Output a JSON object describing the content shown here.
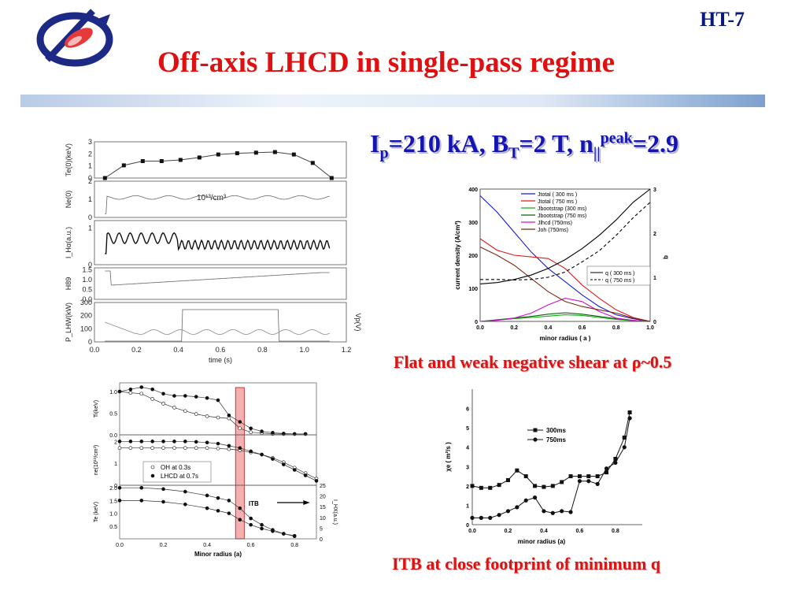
{
  "slide": {
    "tag": "HT-7",
    "title": "Off-axis  LHCD in single-pass regime",
    "params": {
      "ip": "I",
      "ip_sub": "p",
      "ip_val": "=210 kA, B",
      "bt_sub": "T",
      "bt_val": "=2 T, n",
      "n_sub": "||",
      "n_sup": "peak",
      "n_val": "=2.9"
    },
    "caption_shear": "Flat and weak negative shear at ρ~0.5",
    "caption_itb": "ITB at close footprint of minimum q"
  },
  "colors": {
    "title": "#e01010",
    "params": "#1414b4",
    "caption": "#d81414",
    "tag": "#0a1a7a"
  },
  "chart_data": [
    {
      "type": "line",
      "panels": [
        {
          "ylabel": "Te(0)(keV)",
          "yticks": [
            "0",
            "1",
            "2",
            "3"
          ],
          "ylim": [
            0,
            3
          ],
          "x": [
            0.05,
            0.14,
            0.23,
            0.32,
            0.41,
            0.5,
            0.59,
            0.68,
            0.77,
            0.86,
            0.95,
            1.04,
            1.13
          ],
          "values": [
            0,
            1.05,
            1.4,
            1.4,
            1.5,
            1.7,
            1.95,
            2.05,
            2.1,
            2.15,
            1.95,
            1.25,
            0
          ]
        },
        {
          "ylabel": "Ne(0)",
          "annotation": "10¹³/cm³",
          "yticks": [
            "0",
            "1",
            "2"
          ],
          "ylim": [
            0,
            2
          ]
        },
        {
          "ylabel": "I_Hα(a.u.)",
          "yticks": [
            "0",
            "1"
          ],
          "ylim": [
            0,
            1.2
          ]
        },
        {
          "ylabel": "H89",
          "yticks": [
            "0.0",
            "0.5",
            "1.0",
            "1.5"
          ],
          "ylim": [
            0,
            1.6
          ]
        },
        {
          "ylabel": "P_LHW(kW)",
          "ylabel_right": "Vp(V)",
          "yticks": [
            "0",
            "100",
            "200",
            "300"
          ],
          "yticks_right": [
            "0",
            "2"
          ],
          "ylim": [
            0,
            300
          ]
        }
      ],
      "xlabel": "time (s)",
      "xticks": [
        "0.0",
        "0.2",
        "0.4",
        "0.6",
        "0.8",
        "1.0",
        "1.2"
      ],
      "xlim": [
        0,
        1.2
      ]
    },
    {
      "type": "line",
      "xlabel": "minor radius ( a )",
      "ylabel": "current density (A/cm²)",
      "ylabel_right": "q",
      "xlim": [
        0,
        1
      ],
      "ylim": [
        0,
        400
      ],
      "ylim_right": [
        0,
        3
      ],
      "xticks": [
        "0.0",
        "0.2",
        "0.4",
        "0.6",
        "0.8",
        "1.0"
      ],
      "yticks": [
        "0",
        "100",
        "200",
        "300",
        "400"
      ],
      "yticks_right": [
        "0",
        "1",
        "2",
        "3"
      ],
      "x": [
        0,
        0.1,
        0.2,
        0.3,
        0.4,
        0.5,
        0.6,
        0.7,
        0.8,
        0.9,
        1.0
      ],
      "series": [
        {
          "name": "Jtotal ( 300 ms )",
          "color": "#1a1ad0",
          "values": [
            380,
            330,
            270,
            210,
            160,
            120,
            80,
            45,
            20,
            8,
            0
          ]
        },
        {
          "name": "Jtotal ( 750 ms )",
          "color": "#e01a1a",
          "values": [
            250,
            215,
            200,
            195,
            190,
            160,
            110,
            70,
            35,
            12,
            0
          ]
        },
        {
          "name": "Jbootstrap (300 ms)",
          "color": "#10b010",
          "values": [
            0,
            4,
            8,
            12,
            16,
            20,
            18,
            12,
            6,
            2,
            0
          ]
        },
        {
          "name": "Jbootstrap (750 ms)",
          "color": "#106010",
          "values": [
            0,
            5,
            10,
            15,
            22,
            26,
            22,
            15,
            8,
            3,
            0
          ]
        },
        {
          "name": "Jlhcd    (750ms)",
          "color": "#d010d0",
          "values": [
            0,
            3,
            10,
            25,
            50,
            70,
            60,
            30,
            10,
            3,
            0
          ]
        },
        {
          "name": "Joh      (750ms)",
          "color": "#7a2a10",
          "values": [
            225,
            200,
            170,
            130,
            90,
            60,
            45,
            35,
            25,
            10,
            0
          ]
        },
        {
          "name": "q  ( 300 ms )",
          "axis": "right",
          "color": "#000000",
          "values": [
            0.85,
            0.88,
            0.95,
            1.05,
            1.2,
            1.4,
            1.65,
            1.95,
            2.3,
            2.7,
            3.0
          ]
        },
        {
          "name": "q  ( 750 ms )",
          "axis": "right",
          "color": "#000000",
          "dash": true,
          "values": [
            0.95,
            0.95,
            0.94,
            0.95,
            1.0,
            1.12,
            1.35,
            1.6,
            1.95,
            2.35,
            2.7
          ]
        }
      ]
    },
    {
      "type": "line",
      "panels": [
        {
          "ylabel": "Ti(keV)",
          "yticks": [
            "0.0",
            "0.5",
            "1.0"
          ],
          "ylim": [
            0,
            1.2
          ],
          "x": [
            0,
            0.05,
            0.1,
            0.15,
            0.2,
            0.25,
            0.3,
            0.35,
            0.4,
            0.45,
            0.5,
            0.55,
            0.6,
            0.65,
            0.7,
            0.75,
            0.8,
            0.85
          ],
          "series": [
            {
              "name": "OH at 0.3s",
              "marker": "open",
              "values": [
                1.0,
                0.97,
                0.95,
                0.83,
                0.72,
                0.63,
                0.55,
                0.48,
                0.43,
                0.4,
                0.38,
                0.15,
                0.06,
                0.04,
                0.02,
                0.02,
                0.02,
                0.02
              ]
            },
            {
              "name": "LHCD at 0.7s",
              "marker": "filled",
              "values": [
                1.0,
                1.05,
                1.1,
                1.05,
                0.95,
                0.9,
                0.9,
                0.88,
                0.85,
                0.8,
                0.45,
                0.3,
                0.15,
                0.08,
                0.05,
                0.03,
                0.02,
                0.02
              ]
            }
          ]
        },
        {
          "ylabel": "ne(10¹³/cm³)",
          "yticks": [
            "0",
            "1",
            "2"
          ],
          "ylim": [
            0,
            2.3
          ],
          "x": [
            0,
            0.05,
            0.1,
            0.15,
            0.2,
            0.25,
            0.3,
            0.35,
            0.4,
            0.45,
            0.5,
            0.55,
            0.6,
            0.65,
            0.7,
            0.75,
            0.8,
            0.85,
            0.9
          ],
          "series": [
            {
              "name": "OH at 0.3s",
              "marker": "open",
              "values": [
                1.7,
                1.7,
                1.7,
                1.7,
                1.7,
                1.7,
                1.7,
                1.7,
                1.7,
                1.68,
                1.65,
                1.6,
                1.5,
                1.4,
                1.25,
                1.05,
                0.8,
                0.55,
                0.3
              ]
            },
            {
              "name": "LHCD at 0.7s",
              "marker": "filled",
              "values": [
                2.0,
                2.0,
                2.0,
                2.0,
                2.0,
                2.0,
                2.0,
                1.98,
                1.95,
                1.9,
                1.8,
                1.7,
                1.55,
                1.4,
                1.2,
                0.95,
                0.7,
                0.45,
                0.2
              ]
            }
          ]
        },
        {
          "ylabel": "Te (keV)",
          "ylabel_right": "I_HX(a.u.)",
          "annotation": "ITB",
          "yticks": [
            "0.5",
            "1.0",
            "1.5",
            "2.0"
          ],
          "yticks_right": [
            "0",
            "5",
            "10",
            "15",
            "20",
            "25"
          ],
          "ylim": [
            0,
            2.1
          ],
          "x": [
            0,
            0.1,
            0.2,
            0.3,
            0.4,
            0.45,
            0.5,
            0.55,
            0.6,
            0.65,
            0.7,
            0.75,
            0.8
          ],
          "series": [
            {
              "name": "Te OH",
              "values": [
                1.5,
                1.5,
                1.45,
                1.35,
                1.2,
                1.1,
                1.0,
                0.75,
                0.55,
                0.4,
                0.3,
                0.2,
                0.12
              ]
            },
            {
              "name": "Te LHCD",
              "values": [
                2.0,
                2.0,
                1.95,
                1.85,
                1.7,
                1.6,
                1.5,
                1.2,
                0.8,
                0.55,
                0.35,
                0.2,
                0.1
              ]
            }
          ]
        }
      ],
      "legend": [
        "OH at 0.3s",
        "LHCD at 0.7s"
      ],
      "xlabel": "Minor radius (a)",
      "xticks": [
        "0.0",
        "0.2",
        "0.4",
        "0.6",
        "0.8"
      ],
      "xlim": [
        0,
        0.9
      ]
    },
    {
      "type": "line",
      "xlabel": "minor radius (a)",
      "ylabel": "χe ( m²/s )",
      "xlim": [
        0,
        0.95
      ],
      "ylim": [
        0,
        7
      ],
      "xticks": [
        "0.0",
        "0.2",
        "0.4",
        "0.6",
        "0.8"
      ],
      "yticks": [
        "0",
        "1",
        "2",
        "3",
        "4",
        "5",
        "6"
      ],
      "x": [
        0,
        0.05,
        0.1,
        0.15,
        0.2,
        0.25,
        0.3,
        0.35,
        0.4,
        0.45,
        0.5,
        0.55,
        0.6,
        0.65,
        0.7,
        0.75,
        0.8,
        0.85,
        0.88
      ],
      "series": [
        {
          "name": "300ms",
          "marker": "square",
          "values": [
            2.0,
            1.9,
            1.9,
            2.05,
            2.3,
            2.8,
            2.5,
            2.0,
            1.95,
            2.0,
            2.2,
            2.5,
            2.5,
            2.5,
            2.5,
            2.7,
            3.4,
            4.5,
            5.8
          ]
        },
        {
          "name": "750ms",
          "marker": "circle",
          "values": [
            0.35,
            0.35,
            0.35,
            0.5,
            0.7,
            0.9,
            1.25,
            1.4,
            0.7,
            0.6,
            0.7,
            0.65,
            2.25,
            2.25,
            2.1,
            2.9,
            3.2,
            4.0,
            5.5
          ]
        }
      ]
    }
  ]
}
